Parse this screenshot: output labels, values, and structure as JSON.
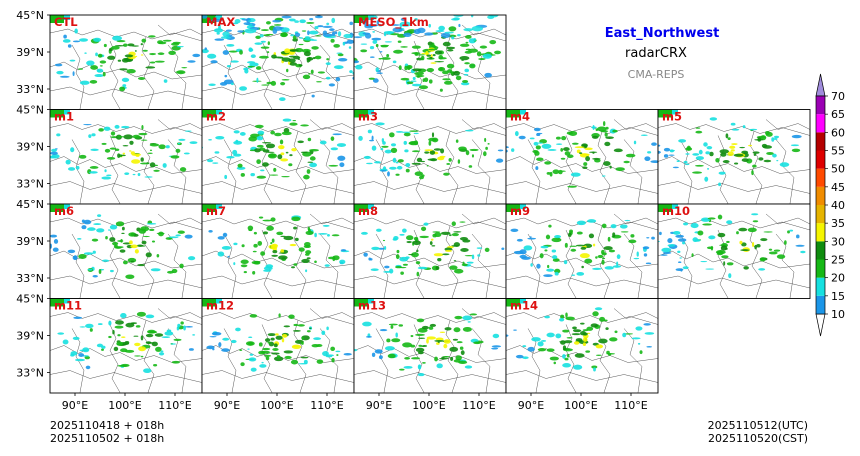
{
  "header": {
    "region": "East_Northwest",
    "product": "radarCRX",
    "system": "CMA-REPS",
    "region_color": "#0000ee",
    "system_color": "#888888"
  },
  "panels": [
    {
      "label": "CTL"
    },
    {
      "label": "MAX"
    },
    {
      "label": "MESO_1km"
    },
    {
      "label": "m1"
    },
    {
      "label": "m2"
    },
    {
      "label": "m3"
    },
    {
      "label": "m4"
    },
    {
      "label": "m5"
    },
    {
      "label": "m6"
    },
    {
      "label": "m7"
    },
    {
      "label": "m8"
    },
    {
      "label": "m9"
    },
    {
      "label": "m10"
    },
    {
      "label": "m11"
    },
    {
      "label": "m12"
    },
    {
      "label": "m13"
    },
    {
      "label": "m14"
    }
  ],
  "panel_label_color": "#dd1111",
  "lat_ticks": [
    "45°N",
    "39°N",
    "33°N"
  ],
  "lon_ticks": [
    "90°E",
    "100°E",
    "110°E"
  ],
  "init_time": {
    "utc": "2025110418  +  018h",
    "cst": "2025110502  +  018h"
  },
  "valid_time": {
    "utc": "2025110512(UTC)",
    "cst": "2025110520(CST)"
  },
  "colorbar": {
    "ticks": [
      "10",
      "15",
      "20",
      "25",
      "30",
      "35",
      "40",
      "45",
      "50",
      "55",
      "60",
      "65",
      "70"
    ],
    "colors": [
      "#1b96e8",
      "#16e0e0",
      "#16b816",
      "#0f8c0f",
      "#f5f500",
      "#e6b400",
      "#f08c00",
      "#ff4a00",
      "#de0000",
      "#b40000",
      "#ff00ff",
      "#9b00b4"
    ],
    "under_color": "#ffffff",
    "over_color": "#a08cdc"
  }
}
